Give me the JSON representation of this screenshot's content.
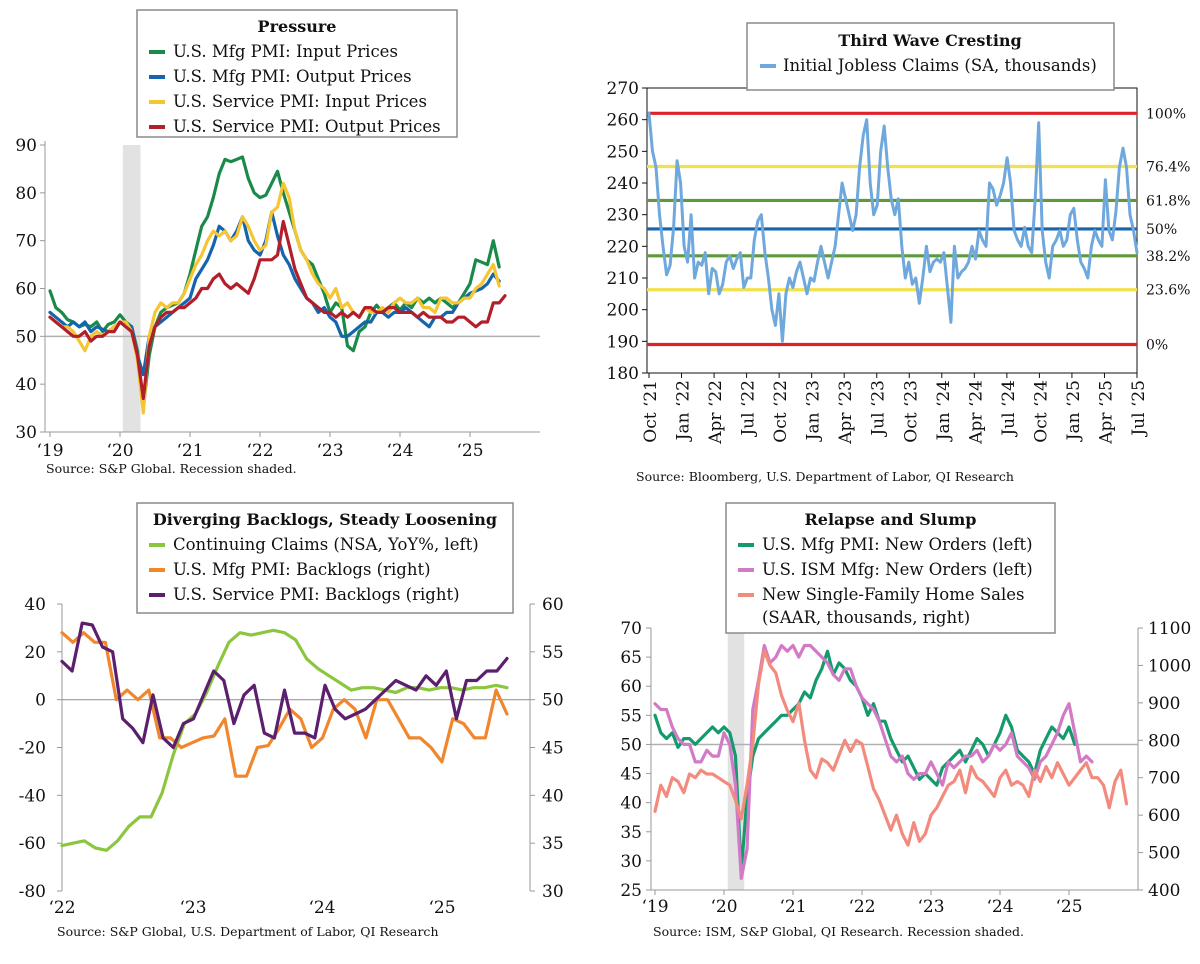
{
  "chart_data": [
    {
      "type": "line",
      "title": "Pressure",
      "source": "Source: S&P Global. Recession shaded.",
      "x_tick_labels": [
        "‘19",
        "‘20",
        "‘21",
        "‘22",
        "‘23",
        "‘24",
        "‘25"
      ],
      "y_ticks": [
        30,
        40,
        50,
        60,
        70,
        80,
        90
      ],
      "ylim": [
        30,
        90
      ],
      "reference_line": 50,
      "x_start": "2019-01",
      "recession": [
        "2020-02",
        "2020-04"
      ],
      "series": [
        {
          "name": "U.S. Mfg PMI: Input Prices",
          "color": "#1a8a4a",
          "values": [
            59.5,
            56,
            55,
            53.5,
            53,
            52,
            52.5,
            52,
            53,
            51,
            52.5,
            53,
            54.5,
            53,
            52,
            47,
            35,
            46,
            52,
            55,
            56,
            56.5,
            57,
            59,
            63,
            68,
            73,
            75,
            79,
            84,
            87,
            86.5,
            87,
            87.5,
            83,
            80,
            79,
            79.5,
            82,
            84.5,
            80,
            76,
            72,
            68,
            66,
            65,
            62,
            59,
            55,
            57,
            56,
            48,
            47,
            51,
            52,
            55,
            56.5,
            55,
            56,
            57,
            55.5,
            57,
            56,
            58,
            57,
            58,
            57,
            58,
            57,
            56,
            57,
            59,
            61,
            66,
            65.5,
            65,
            70,
            64.5
          ]
        },
        {
          "name": "U.S. Mfg PMI: Output Prices",
          "color": "#1565ad",
          "values": [
            55,
            54,
            53,
            52,
            53,
            52,
            53,
            51,
            52,
            51.5,
            51,
            52,
            53,
            52.5,
            52,
            46,
            42,
            50,
            52,
            53,
            54,
            55,
            56,
            57,
            58,
            62,
            64,
            66,
            69,
            73,
            72,
            70,
            72,
            75,
            70,
            68,
            67,
            70,
            76,
            71,
            67,
            65,
            62,
            60,
            58,
            57,
            55,
            56,
            54,
            53,
            50,
            50,
            51,
            52,
            53,
            53,
            55,
            55,
            54,
            55,
            55,
            56,
            55,
            54,
            53,
            52,
            54,
            54,
            55,
            55,
            57,
            58,
            59,
            59.5,
            60,
            61,
            63,
            61.5
          ]
        },
        {
          "name": "U.S. Service PMI: Input Prices",
          "color": "#f6c533",
          "values": [
            54,
            53,
            52,
            52,
            51,
            49,
            47,
            50,
            51,
            50,
            51,
            52,
            53,
            53,
            51,
            45,
            34,
            50,
            55,
            57,
            56,
            57,
            57,
            59,
            62,
            65,
            67,
            70,
            72,
            71,
            72,
            70,
            71,
            75,
            73,
            70,
            68,
            69,
            76,
            77,
            82,
            79,
            72,
            68,
            66,
            63,
            61,
            60,
            58,
            60,
            56,
            57,
            55,
            54,
            56,
            55,
            55,
            56,
            55,
            57,
            58,
            57,
            57,
            58,
            56,
            56,
            55,
            58,
            58,
            57,
            57,
            58,
            58,
            60,
            61,
            63,
            65,
            60.5
          ]
        },
        {
          "name": "U.S. Service PMI: Output Prices",
          "color": "#b21f2b",
          "values": [
            54,
            53,
            52,
            51,
            50,
            50,
            51,
            49,
            50,
            50,
            51,
            51,
            53,
            52,
            51,
            46,
            37,
            48,
            52,
            54,
            55,
            55,
            56,
            56,
            57,
            58,
            60,
            60,
            62,
            63,
            61,
            60,
            61,
            60,
            59,
            62,
            66,
            66,
            66,
            67,
            74,
            69,
            64,
            61,
            58,
            57,
            56,
            55,
            55,
            54,
            55,
            54,
            55,
            54,
            56,
            56,
            55,
            55,
            56,
            56,
            55,
            55,
            55,
            54,
            55,
            54,
            54,
            54,
            53,
            53,
            54,
            54,
            53,
            52,
            53,
            53,
            57,
            57,
            58.5
          ]
        }
      ]
    },
    {
      "type": "line",
      "title": "Third Wave Cresting",
      "source": "Source: Bloomberg, U.S. Department of Labor, QI Research",
      "x_tick_labels": [
        "Oct ‘21",
        "Jan ‘22",
        "Apr ‘22",
        "Jul ‘22",
        "Oct ‘22",
        "Jan ‘23",
        "Apr ‘23",
        "Jul ‘23",
        "Oct ‘23",
        "Jan ‘24",
        "Apr ‘24",
        "Jul ‘24",
        "Oct ‘24",
        "Jan ‘25",
        "Apr ‘25",
        "Jul ‘25"
      ],
      "y_ticks": [
        180,
        190,
        200,
        210,
        220,
        230,
        240,
        250,
        260,
        270
      ],
      "ylim": [
        180,
        270
      ],
      "fib_levels": [
        {
          "label": "100%",
          "value": 262,
          "color": "#e0202a"
        },
        {
          "label": "76.4%",
          "value": 245.2,
          "color": "#f2e14a"
        },
        {
          "label": "61.8%",
          "value": 234.5,
          "color": "#5e9a3a"
        },
        {
          "label": "50%",
          "value": 225.5,
          "color": "#1565ad"
        },
        {
          "label": "38.2%",
          "value": 217,
          "color": "#5e9a3a"
        },
        {
          "label": "23.6%",
          "value": 206.3,
          "color": "#f2e14a"
        },
        {
          "label": "0%",
          "value": 189,
          "color": "#e0202a"
        }
      ],
      "series": [
        {
          "name": "Initial Jobless Claims (SA, thousands)",
          "color": "#6fa8dc",
          "values": [
            262,
            250,
            245,
            230,
            220,
            211,
            214,
            226,
            247,
            240,
            220,
            215,
            230,
            210,
            215,
            214,
            218,
            205,
            213,
            212,
            205,
            208,
            215,
            217,
            213,
            216,
            218,
            207,
            210,
            210,
            222,
            228,
            230,
            218,
            210,
            200,
            195,
            205,
            190,
            205,
            210,
            207,
            212,
            215,
            210,
            205,
            210,
            209,
            215,
            220,
            215,
            210,
            215,
            220,
            230,
            240,
            235,
            230,
            225,
            230,
            245,
            255,
            260,
            240,
            230,
            233,
            250,
            258,
            245,
            235,
            230,
            235,
            220,
            210,
            215,
            208,
            210,
            202,
            210,
            220,
            212,
            215,
            216,
            215,
            218,
            207,
            196,
            220,
            210,
            212,
            213,
            215,
            220,
            216,
            225,
            222,
            220,
            240,
            238,
            233,
            236,
            240,
            248,
            240,
            225,
            222,
            220,
            226,
            220,
            218,
            235,
            259,
            225,
            215,
            210,
            220,
            222,
            225,
            220,
            222,
            230,
            232,
            222,
            215,
            213,
            210,
            220,
            225,
            222,
            220,
            241,
            225,
            222,
            231,
            245,
            251,
            245,
            230,
            225,
            218
          ]
        }
      ]
    },
    {
      "type": "line",
      "title": "Diverging Backlogs, Steady Loosening",
      "source": "Source: S&P Global, U.S. Department of Labor, QI Research",
      "x_tick_labels": [
        "‘22",
        "‘23",
        "‘24",
        "‘25"
      ],
      "y_ticks_left": [
        -80,
        -60,
        -40,
        -20,
        0,
        20,
        40
      ],
      "ylim_left": [
        -80,
        40
      ],
      "y_ticks_right": [
        30,
        35,
        40,
        45,
        50,
        55,
        60
      ],
      "ylim_right": [
        30,
        60
      ],
      "series": [
        {
          "name": "Continuing Claims (NSA, YoY%, left)",
          "color": "#8cc63f",
          "axis": "left",
          "values": [
            -61,
            -60,
            -59,
            -62,
            -63,
            -59,
            -53,
            -49,
            -49,
            -39,
            -23,
            -10,
            -6,
            3,
            14,
            24,
            28,
            27,
            28,
            29,
            28,
            25,
            17,
            13,
            10,
            7,
            4,
            5,
            5,
            4,
            3,
            5,
            5,
            4,
            5,
            5,
            4,
            5,
            5,
            6,
            5
          ]
        },
        {
          "name": "U.S. Mfg PMI: Backlogs (right)",
          "color": "#f0872e",
          "axis": "right",
          "values": [
            57,
            56,
            57,
            56,
            56,
            50,
            51,
            50,
            51,
            46,
            46,
            45,
            45.5,
            46,
            46.2,
            48,
            42,
            42,
            45,
            45.2,
            47,
            49,
            48,
            45,
            46,
            49,
            50,
            49,
            46,
            50,
            50,
            48,
            46,
            46,
            45,
            43.5,
            48,
            47.5,
            46,
            46,
            51,
            48.5
          ]
        },
        {
          "name": "U.S. Service PMI: Backlogs (right)",
          "color": "#5c1f6e",
          "axis": "right",
          "values": [
            54,
            53,
            58,
            57.8,
            55.5,
            55,
            48,
            47,
            45.5,
            50.5,
            46,
            45,
            47.5,
            48,
            50.5,
            53,
            52,
            47.5,
            50.5,
            51.5,
            46.5,
            46,
            51,
            46.5,
            46.5,
            46,
            51.5,
            49,
            48,
            48.5,
            49,
            50,
            51,
            52,
            51.5,
            51,
            52.5,
            51.5,
            53,
            48,
            52,
            52,
            53,
            53,
            54.3
          ]
        }
      ]
    },
    {
      "type": "line",
      "title": "Relapse and Slump",
      "source": "Source: ISM, S&P Global, QI Research. Recession shaded.",
      "x_tick_labels": [
        "‘19",
        "‘20",
        "‘21",
        "‘22",
        "‘23",
        "‘24",
        "‘25"
      ],
      "y_ticks_left": [
        25,
        30,
        35,
        40,
        45,
        50,
        55,
        60,
        65,
        70
      ],
      "ylim_left": [
        25,
        70
      ],
      "y_ticks_right": [
        400,
        500,
        600,
        700,
        800,
        900,
        1000,
        1100
      ],
      "ylim_right": [
        400,
        1100
      ],
      "reference_line": 50,
      "x_start": "2019-01",
      "recession": [
        "2020-02",
        "2020-04"
      ],
      "series": [
        {
          "name": "U.S. Mfg PMI: New Orders (left)",
          "color": "#159a6e",
          "axis": "left",
          "values": [
            55,
            52,
            51,
            52,
            49.5,
            51,
            51,
            50,
            51,
            52,
            53,
            52,
            53,
            52,
            48,
            28,
            41,
            48,
            51,
            52,
            53,
            54,
            55,
            55,
            56,
            57,
            59,
            58,
            61,
            63,
            66,
            62,
            64,
            63,
            61,
            60,
            58,
            55,
            57,
            54,
            54,
            51,
            49,
            47,
            48,
            46,
            44,
            45,
            44,
            43,
            46,
            47,
            48,
            49,
            47,
            49,
            51,
            50,
            48,
            50,
            52,
            55,
            53,
            49,
            48,
            47,
            45,
            49,
            51,
            53,
            52,
            51,
            53,
            50
          ]
        },
        {
          "name": "U.S. ISM Mfg: New Orders (left)",
          "color": "#d27ac6",
          "axis": "left",
          "values": [
            57,
            56,
            56,
            53,
            51,
            50,
            50,
            47,
            47,
            49,
            48,
            48,
            52,
            50,
            43,
            27,
            32,
            56,
            61,
            67,
            64,
            65,
            67,
            66,
            67,
            65,
            67,
            67,
            66,
            65,
            64,
            62,
            61,
            63,
            63,
            60,
            58,
            57,
            56,
            54,
            51,
            48,
            47,
            48,
            45,
            44,
            45,
            45,
            47,
            45,
            43,
            47,
            46,
            47,
            48,
            48,
            49,
            47,
            48,
            50,
            49,
            50,
            52,
            48,
            47,
            46,
            44,
            47,
            48,
            50,
            52,
            55,
            57,
            52,
            47,
            48,
            47
          ]
        },
        {
          "name": "New Single-Family Home Sales (SAAR, thousands, right)",
          "color": "#f28b7e",
          "axis": "right",
          "values": [
            610,
            680,
            650,
            700,
            690,
            660,
            710,
            700,
            720,
            710,
            710,
            700,
            690,
            680,
            640,
            590,
            680,
            790,
            950,
            1040,
            1000,
            980,
            920,
            880,
            850,
            900,
            800,
            720,
            700,
            750,
            740,
            720,
            760,
            800,
            770,
            800,
            790,
            730,
            670,
            640,
            600,
            560,
            600,
            550,
            520,
            580,
            530,
            550,
            600,
            620,
            650,
            680,
            690,
            720,
            660,
            730,
            700,
            690,
            670,
            650,
            700,
            720,
            680,
            690,
            680,
            650,
            720,
            690,
            730,
            700,
            740,
            710,
            680,
            700,
            720,
            740,
            700,
            700,
            680,
            620,
            690,
            720,
            630
          ]
        }
      ]
    }
  ]
}
